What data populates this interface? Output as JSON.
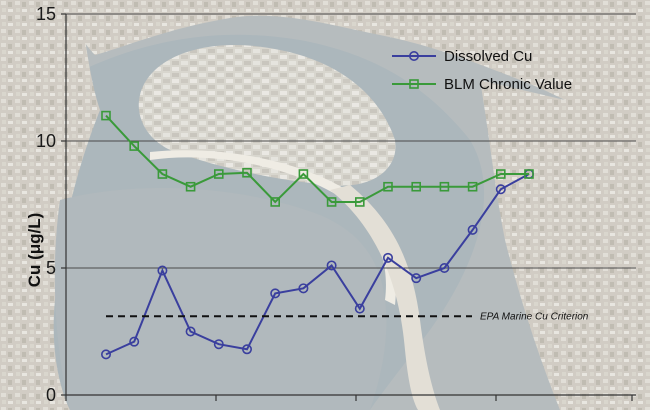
{
  "chart_data": {
    "type": "line",
    "title": "",
    "xlabel": "",
    "ylabel": "Cu (μg/L)",
    "ylim": [
      0,
      15
    ],
    "yticks": [
      0,
      5,
      10,
      15
    ],
    "grid": true,
    "legend_position": "top-right",
    "background": "aerial-photo",
    "x": [
      1,
      2,
      3,
      4,
      5,
      6,
      7,
      8,
      9,
      10,
      11,
      12,
      13,
      14,
      15,
      16
    ],
    "series": [
      {
        "name": "Dissolved Cu",
        "color": "#3a3f9e",
        "marker": "circle",
        "values": [
          1.6,
          2.1,
          4.9,
          2.5,
          2.0,
          1.8,
          4.0,
          4.2,
          5.1,
          3.4,
          5.4,
          4.6,
          5.0,
          6.5,
          8.1,
          8.7
        ]
      },
      {
        "name": "BLM Chronic Value",
        "color": "#3a9a3a",
        "marker": "square",
        "values": [
          11.0,
          9.8,
          8.7,
          8.2,
          8.7,
          8.75,
          7.6,
          8.7,
          7.6,
          7.6,
          8.2,
          8.2,
          8.2,
          8.2,
          8.7,
          8.7
        ]
      }
    ],
    "reference_lines": [
      {
        "label": "EPA Marine Cu Criterion",
        "y": 3.1,
        "style": "dashed",
        "color": "#111111"
      }
    ]
  }
}
